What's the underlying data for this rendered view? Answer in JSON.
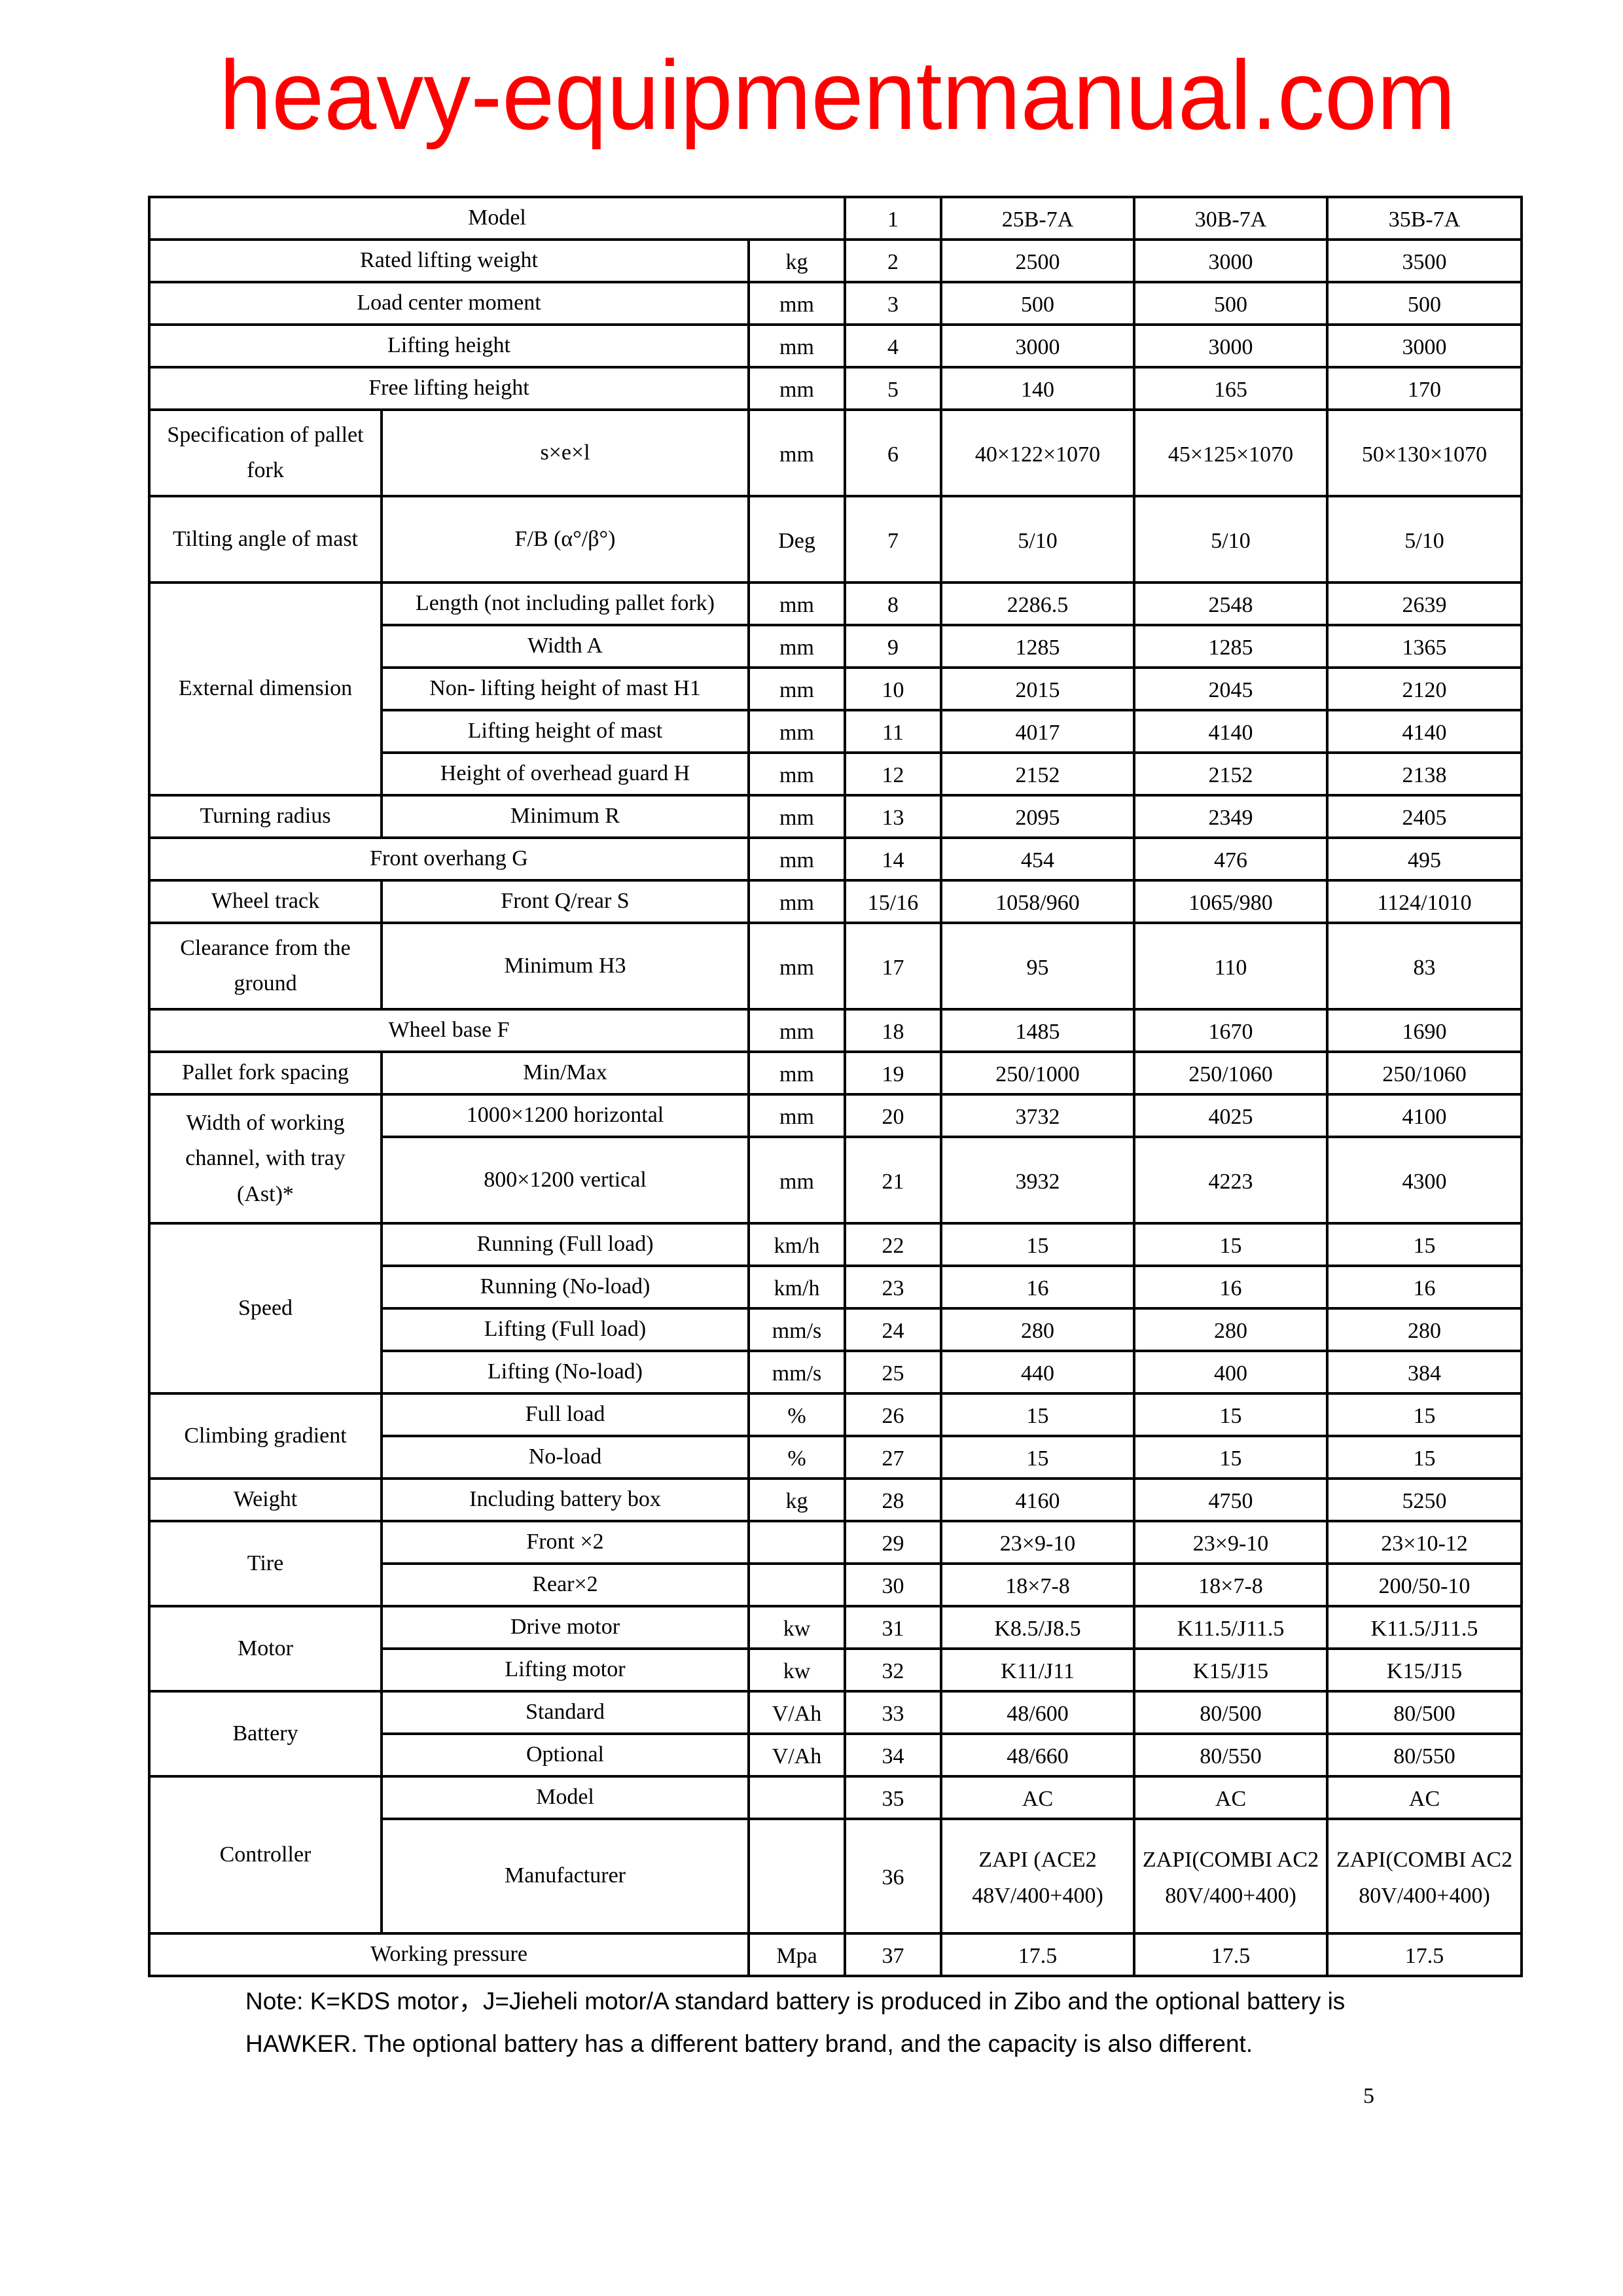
{
  "columns": [
    "25B-7A",
    "30B-7A",
    "35B-7A"
  ],
  "rows": [
    {
      "group": "Model",
      "param": null,
      "unit": null,
      "no": "1",
      "values": [
        "25B-7A",
        "30B-7A",
        "35B-7A"
      ]
    },
    {
      "group": "Rated lifting weight",
      "param": null,
      "unit": "kg",
      "no": "2",
      "values": [
        "2500",
        "3000",
        "3500"
      ]
    },
    {
      "group": "Load center moment",
      "param": null,
      "unit": "mm",
      "no": "3",
      "values": [
        "500",
        "500",
        "500"
      ]
    },
    {
      "group": "Lifting height",
      "param": null,
      "unit": "mm",
      "no": "4",
      "values": [
        "3000",
        "3000",
        "3000"
      ]
    },
    {
      "group": "Free lifting height",
      "param": null,
      "unit": "mm",
      "no": "5",
      "values": [
        "140",
        "165",
        "170"
      ]
    },
    {
      "group": "Specification of pallet fork",
      "param": "s×e×l",
      "unit": "mm",
      "no": "6",
      "values": [
        "40×122×1070",
        "45×125×1070",
        "50×130×1070"
      ]
    },
    {
      "group": "Tilting angle of mast",
      "param": "F/B (α°/β°)",
      "unit": "Deg",
      "no": "7",
      "values": [
        "5/10",
        "5/10",
        "5/10"
      ]
    },
    {
      "group": "External dimension",
      "param": "Length (not including pallet fork)",
      "unit": "mm",
      "no": "8",
      "values": [
        "2286.5",
        "2548",
        "2639"
      ]
    },
    {
      "group": "External dimension",
      "param": "Width A",
      "unit": "mm",
      "no": "9",
      "values": [
        "1285",
        "1285",
        "1365"
      ]
    },
    {
      "group": "External dimension",
      "param": "Non- lifting height of mast H1",
      "unit": "mm",
      "no": "10",
      "values": [
        "2015",
        "2045",
        "2120"
      ]
    },
    {
      "group": "External dimension",
      "param": "Lifting height of mast",
      "unit": "mm",
      "no": "11",
      "values": [
        "4017",
        "4140",
        "4140"
      ]
    },
    {
      "group": "External dimension",
      "param": "Height of overhead guard H",
      "unit": "mm",
      "no": "12",
      "values": [
        "2152",
        "2152",
        "2138"
      ]
    },
    {
      "group": "Turning radius",
      "param": "Minimum R",
      "unit": "mm",
      "no": "13",
      "values": [
        "2095",
        "2349",
        "2405"
      ]
    },
    {
      "group": "Front overhang G",
      "param": null,
      "unit": "mm",
      "no": "14",
      "values": [
        "454",
        "476",
        "495"
      ]
    },
    {
      "group": "Wheel track",
      "param": "Front Q/rear S",
      "unit": "mm",
      "no": "15/16",
      "values": [
        "1058/960",
        "1065/980",
        "1124/1010"
      ]
    },
    {
      "group": "Clearance from the ground",
      "param": "Minimum H3",
      "unit": "mm",
      "no": "17",
      "values": [
        "95",
        "110",
        "83"
      ]
    },
    {
      "group": "Wheel base F",
      "param": null,
      "unit": "mm",
      "no": "18",
      "values": [
        "1485",
        "1670",
        "1690"
      ]
    },
    {
      "group": "Pallet fork spacing",
      "param": "Min/Max",
      "unit": "mm",
      "no": "19",
      "values": [
        "250/1000",
        "250/1060",
        "250/1060"
      ]
    },
    {
      "group": "Width of working channel, with tray (Ast)*",
      "param": "1000×1200 horizontal",
      "unit": "mm",
      "no": "20",
      "values": [
        "3732",
        "4025",
        "4100"
      ]
    },
    {
      "group": "Width of working channel, with tray (Ast)*",
      "param": "800×1200 vertical",
      "unit": "mm",
      "no": "21",
      "values": [
        "3932",
        "4223",
        "4300"
      ]
    },
    {
      "group": "Speed",
      "param": "Running (Full load)",
      "unit": "km/h",
      "no": "22",
      "values": [
        "15",
        "15",
        "15"
      ]
    },
    {
      "group": "Speed",
      "param": "Running (No-load)",
      "unit": "km/h",
      "no": "23",
      "values": [
        "16",
        "16",
        "16"
      ]
    },
    {
      "group": "Speed",
      "param": "Lifting (Full load)",
      "unit": "mm/s",
      "no": "24",
      "values": [
        "280",
        "280",
        "280"
      ]
    },
    {
      "group": "Speed",
      "param": "Lifting (No-load)",
      "unit": "mm/s",
      "no": "25",
      "values": [
        "440",
        "400",
        "384"
      ]
    },
    {
      "group": "Climbing gradient",
      "param": "Full load",
      "unit": "%",
      "no": "26",
      "values": [
        "15",
        "15",
        "15"
      ]
    },
    {
      "group": "Climbing gradient",
      "param": "No-load",
      "unit": "%",
      "no": "27",
      "values": [
        "15",
        "15",
        "15"
      ]
    },
    {
      "group": "Weight",
      "param": "Including battery box",
      "unit": "kg",
      "no": "28",
      "values": [
        "4160",
        "4750",
        "5250"
      ]
    },
    {
      "group": "Tire",
      "param": "Front ×2",
      "unit": "",
      "no": "29",
      "values": [
        "23×9-10",
        "23×9-10",
        "23×10-12"
      ]
    },
    {
      "group": "Tire",
      "param": "Rear×2",
      "unit": "",
      "no": "30",
      "values": [
        "18×7-8",
        "18×7-8",
        "200/50-10"
      ]
    },
    {
      "group": "Motor",
      "param": "Drive motor",
      "unit": "kw",
      "no": "31",
      "values": [
        "K8.5/J8.5",
        "K11.5/J11.5",
        "K11.5/J11.5"
      ]
    },
    {
      "group": "Motor",
      "param": "Lifting motor",
      "unit": "kw",
      "no": "32",
      "values": [
        "K11/J11",
        "K15/J15",
        "K15/J15"
      ]
    },
    {
      "group": "Battery",
      "param": "Standard",
      "unit": "V/Ah",
      "no": "33",
      "values": [
        "48/600",
        "80/500",
        "80/500"
      ]
    },
    {
      "group": "Battery",
      "param": "Optional",
      "unit": "V/Ah",
      "no": "34",
      "values": [
        "48/660",
        "80/550",
        "80/550"
      ]
    },
    {
      "group": "Controller",
      "param": "Model",
      "unit": "",
      "no": "35",
      "values": [
        "AC",
        "AC",
        "AC"
      ]
    },
    {
      "group": "Controller",
      "param": "Manufacturer",
      "unit": "",
      "no": "36",
      "values": [
        "ZAPI (ACE2 48V/400+400)",
        "ZAPI(COMBI AC2 80V/400+400)",
        "ZAPI(COMBI AC2 80V/400+400)"
      ]
    },
    {
      "group": "Working pressure",
      "param": null,
      "unit": "Mpa",
      "no": "37",
      "values": [
        "17.5",
        "17.5",
        "17.5"
      ]
    }
  ],
  "note": {
    "line1": "Note: K=KDS motor，J=Jieheli motor/A standard battery is produced in Zibo and the optional battery is",
    "line2": "HAWKER. The optional battery has a different battery brand, and the capacity is also different."
  },
  "page_number": "5",
  "watermark": {
    "text": "heavy-equipmentmanual.com",
    "color": "#ff0000"
  }
}
